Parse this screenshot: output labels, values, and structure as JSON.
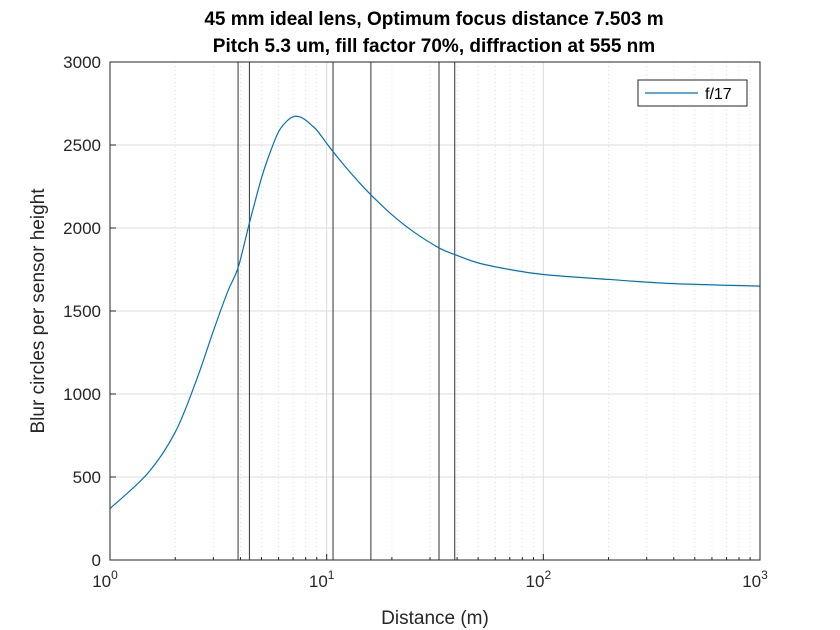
{
  "chart_data": {
    "type": "line",
    "title": "45 mm ideal lens, Optimum focus distance 7.503 m",
    "subtitle": "Pitch 5.3 um, fill factor 70%, diffraction at 555 nm",
    "xlabel": "Distance (m)",
    "ylabel": "Blur circles per sensor height",
    "xscale": "log",
    "xlim": [
      1,
      1000
    ],
    "ylim": [
      0,
      3000
    ],
    "x_ticks": [
      {
        "base": "10",
        "exp": "0",
        "value": 1
      },
      {
        "base": "10",
        "exp": "1",
        "value": 10
      },
      {
        "base": "10",
        "exp": "2",
        "value": 100
      },
      {
        "base": "10",
        "exp": "3",
        "value": 1000
      }
    ],
    "y_ticks": [
      "0",
      "500",
      "1000",
      "1500",
      "2000",
      "2500",
      "3000"
    ],
    "grid": true,
    "legend": "top-right",
    "vertical_lines": [
      3.9,
      4.4,
      10.7,
      16,
      33,
      39
    ],
    "series": [
      {
        "name": "f/17",
        "color": "#0072BD",
        "x": [
          1,
          1.5,
          2,
          2.5,
          3,
          3.5,
          3.9,
          4.4,
          5,
          5.5,
          6,
          6.5,
          7,
          7.5,
          8,
          8.5,
          9,
          10,
          10.7,
          12,
          14,
          16,
          20,
          25,
          33,
          39,
          50,
          70,
          100,
          200,
          400,
          1000
        ],
        "y": [
          310,
          525,
          770,
          1080,
          1380,
          1620,
          1760,
          2030,
          2300,
          2460,
          2580,
          2640,
          2670,
          2670,
          2650,
          2620,
          2590,
          2510,
          2460,
          2380,
          2280,
          2200,
          2080,
          1980,
          1880,
          1840,
          1790,
          1750,
          1720,
          1690,
          1665,
          1650
        ]
      }
    ]
  }
}
